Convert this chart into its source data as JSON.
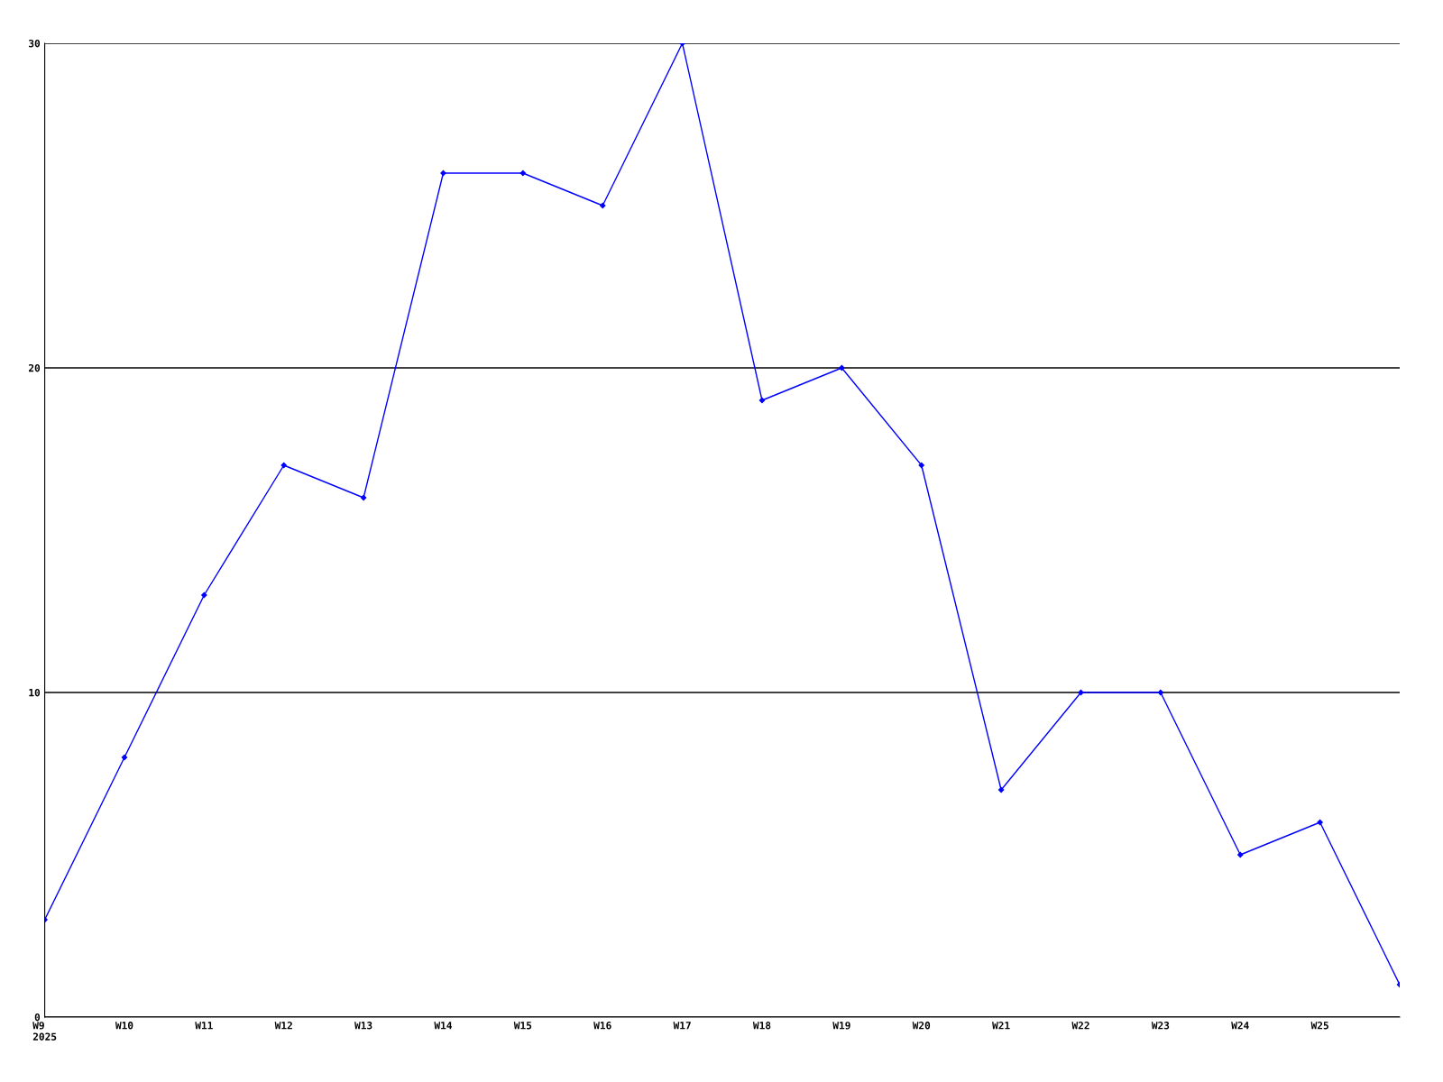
{
  "chart_data": {
    "type": "line",
    "categories": [
      "W9\n2025",
      "W10",
      "W11",
      "W12",
      "W13",
      "W14",
      "W15",
      "W16",
      "W17",
      "W18",
      "W19",
      "W20",
      "W21",
      "W22",
      "W23",
      "W24",
      "W25",
      null
    ],
    "series": [
      {
        "color": "#0000ff",
        "values": [
          3,
          8,
          13,
          17,
          16,
          26,
          26,
          25,
          30,
          19,
          20,
          17,
          7,
          10,
          10,
          5,
          6,
          1
        ]
      }
    ],
    "ylim": [
      0,
      30
    ],
    "yticks": [
      0,
      10,
      20,
      30
    ],
    "grid": "y",
    "marker": "diamond",
    "line_style": "solid",
    "legend": false
  }
}
